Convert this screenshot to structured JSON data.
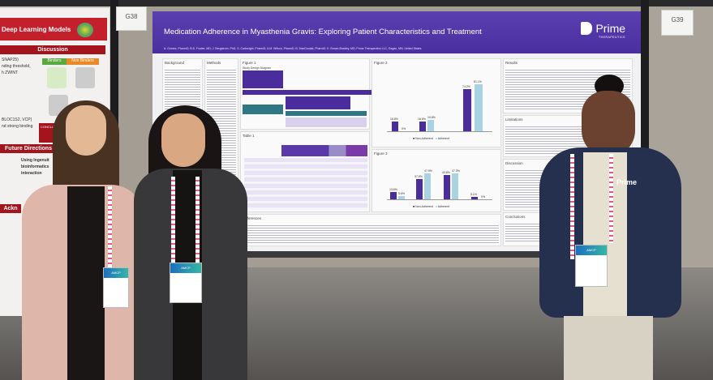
{
  "booth_cards": {
    "left": "G38",
    "right": "G39"
  },
  "left_poster": {
    "title": "Deep Learning Models",
    "discussion_heading": "Discussion",
    "binders": "Binders",
    "non_binders": "Non Binders",
    "future_heading": "Future Directions",
    "conclusion_label": "CONCLUSI",
    "snippets": [
      "SNAP25)",
      "nding threshold,",
      "h ZWINT",
      "BLOC1S2, VCP)",
      "nd strong binding",
      "Using  Ingenuit",
      "bioinformatics",
      "interaction",
      "Ackn"
    ]
  },
  "main_poster": {
    "title": "Medication Adherence in Myasthenia Gravis: Exploring Patient Characteristics and Treatment",
    "authors": "A. Gomez, PharmD; B.D. Fowler, MD; J. Bergstrom, PhD; S. Cartwright, PharmD; A.M. Wilson, PharmD; B. MacDonald, PharmD; K. Brown-Bradley, MD; Prime Therapeutics LLC, Eagan, MN, United States",
    "logo": {
      "name": "Prime",
      "sub": "THERAPEUTICS"
    },
    "sections": {
      "background": "Background",
      "methods": "Methods",
      "figure1": "Figure 1",
      "figure1_sub": "Study Design Diagram",
      "table1": "Table 1",
      "figure2": "Figure 2",
      "figure3": "Figure 3",
      "results": "Results",
      "limitations": "Limitations",
      "discussion": "Discussion",
      "conclusions": "Conclusions",
      "references": "References"
    },
    "figure2": {
      "bars": [
        {
          "non_adherent": "16.8%",
          "adherent": "0%"
        },
        {
          "non_adherent": "16.6%",
          "adherent": "19.8%"
        },
        {
          "non_adherent": "74.2%",
          "adherent": "81.1%"
        }
      ],
      "legend": [
        "Non-Adherent",
        "Adherent"
      ]
    },
    "figure3": {
      "bars": [
        {
          "non_adherent": "13.6%",
          "adherent": "5.6%"
        },
        {
          "non_adherent": "37.5%",
          "adherent": "47.9%"
        },
        {
          "non_adherent": "43.8%",
          "adherent": "47.3%"
        },
        {
          "non_adherent": "5.1%",
          "adherent": "0%"
        }
      ],
      "legend": [
        "Non-Adherent",
        "Adherent"
      ]
    }
  },
  "people": {
    "right_jacket_logo": "Prime",
    "badge_brand": "AMCP"
  },
  "colors": {
    "banner_purple": "#4f35a8",
    "non_adherent": "#4a2c9c",
    "adherent": "#a9d3e2",
    "left_banner_red": "#c4202b"
  }
}
